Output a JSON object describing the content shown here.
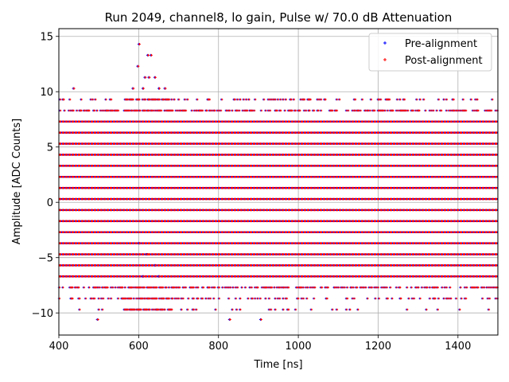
{
  "chart_data": {
    "type": "scatter",
    "title": "Run 2049, channel8, lo gain, Pulse w/ 70.0 dB Attenuation",
    "xlabel": "Time [ns]",
    "ylabel": "Amplitude [ADC Counts]",
    "xlim": [
      400,
      1500
    ],
    "ylim": [
      -12,
      15.7
    ],
    "grid": true,
    "xticks": [
      400,
      600,
      800,
      1000,
      1200,
      1400
    ],
    "xtick_labels": [
      "400",
      "600",
      "800",
      "1000",
      "1200",
      "1400"
    ],
    "yticks": [
      -10,
      -5,
      0,
      5,
      10,
      15
    ],
    "ytick_labels": [
      "−10",
      "−5",
      "0",
      "5",
      "10",
      "15"
    ],
    "legend": {
      "position": "top-right",
      "entries": [
        {
          "label": "Pre-alignment",
          "color": "#0000ff",
          "marker": "+"
        },
        {
          "label": "Post-alignment",
          "color": "#ff0000",
          "marker": "+"
        }
      ]
    },
    "series": [
      {
        "name": "Pre-alignment",
        "color": "#0000ff",
        "dense_levels": [
          -6.7,
          -5.7,
          -4.7,
          -3.7,
          -2.7,
          -1.7,
          -0.7,
          0.3,
          1.3,
          2.3,
          3.3,
          4.3,
          5.3,
          6.3,
          7.3
        ],
        "sparse_points": [
          [
            436,
            10.3
          ],
          [
            600,
            14.3
          ],
          [
            597,
            12.3
          ],
          [
            622,
            13.3
          ],
          [
            630,
            13.3
          ],
          [
            615,
            11.3
          ],
          [
            625,
            11.3
          ],
          [
            640,
            11.3
          ],
          [
            585,
            10.3
          ],
          [
            610,
            10.3
          ],
          [
            650,
            10.3
          ],
          [
            665,
            10.3
          ],
          [
            496,
            -10.6
          ],
          [
            827,
            -10.6
          ],
          [
            905,
            -10.6
          ],
          [
            600,
            -3.7
          ],
          [
            620,
            -4.7
          ],
          [
            640,
            -5.7
          ],
          [
            610,
            -6.7
          ],
          [
            650,
            -6.7
          ]
        ]
      },
      {
        "name": "Post-alignment",
        "color": "#ff0000",
        "dense_levels": [
          -6.7,
          -5.7,
          -4.7,
          -3.7,
          -2.7,
          -1.7,
          -0.7,
          0.3,
          1.3,
          2.3,
          3.3,
          4.3,
          5.3,
          6.3,
          7.3
        ],
        "sparse_points": [
          [
            436,
            10.3
          ],
          [
            600,
            14.3
          ],
          [
            597,
            12.3
          ],
          [
            622,
            13.3
          ],
          [
            630,
            13.3
          ],
          [
            615,
            11.3
          ],
          [
            625,
            11.3
          ],
          [
            640,
            11.3
          ],
          [
            585,
            10.3
          ],
          [
            610,
            10.3
          ],
          [
            650,
            10.3
          ],
          [
            665,
            10.3
          ],
          [
            496,
            -10.6
          ],
          [
            827,
            -10.6
          ],
          [
            905,
            -10.6
          ],
          [
            600,
            -3.7
          ],
          [
            620,
            -4.7
          ],
          [
            640,
            -5.7
          ],
          [
            610,
            -6.7
          ],
          [
            650,
            -6.7
          ]
        ]
      }
    ],
    "sparse_levels": [
      {
        "y": 8.3,
        "density": 0.45
      },
      {
        "y": 9.3,
        "density": 0.18
      },
      {
        "y": -7.7,
        "density": 0.4
      },
      {
        "y": -8.7,
        "density": 0.2
      },
      {
        "y": -9.7,
        "density": 0.08
      }
    ]
  }
}
